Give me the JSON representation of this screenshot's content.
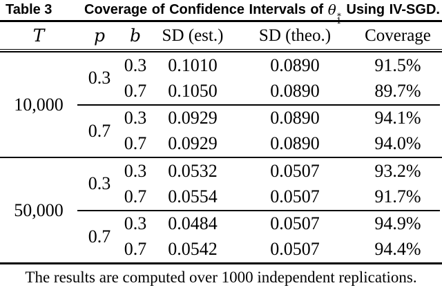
{
  "title": {
    "label": "Table 3",
    "caption_words": [
      "Coverage",
      "of",
      "Confidence",
      "Intervals",
      "of"
    ],
    "math": {
      "symbol": "θ",
      "sup": "∗",
      "sub": "1"
    },
    "caption_suffix_words": [
      "Using",
      "IV-SGD."
    ]
  },
  "table": {
    "columns": {
      "T": "T",
      "p": "p",
      "b": "b",
      "sd_est": "SD (est.)",
      "sd_theo": "SD (theo.)",
      "coverage": "Coverage"
    },
    "groups": [
      {
        "T": "10,000",
        "p_groups": [
          {
            "p": "0.3",
            "rows": [
              {
                "b": "0.3",
                "sd_est": "0.1010",
                "sd_theo": "0.0890",
                "coverage": "91.5%"
              },
              {
                "b": "0.7",
                "sd_est": "0.1050",
                "sd_theo": "0.0890",
                "coverage": "89.7%"
              }
            ]
          },
          {
            "p": "0.7",
            "rows": [
              {
                "b": "0.3",
                "sd_est": "0.0929",
                "sd_theo": "0.0890",
                "coverage": "94.1%"
              },
              {
                "b": "0.7",
                "sd_est": "0.0929",
                "sd_theo": "0.0890",
                "coverage": "94.0%"
              }
            ]
          }
        ]
      },
      {
        "T": "50,000",
        "p_groups": [
          {
            "p": "0.3",
            "rows": [
              {
                "b": "0.3",
                "sd_est": "0.0532",
                "sd_theo": "0.0507",
                "coverage": "93.2%"
              },
              {
                "b": "0.7",
                "sd_est": "0.0554",
                "sd_theo": "0.0507",
                "coverage": "91.7%"
              }
            ]
          },
          {
            "p": "0.7",
            "rows": [
              {
                "b": "0.3",
                "sd_est": "0.0484",
                "sd_theo": "0.0507",
                "coverage": "94.9%"
              },
              {
                "b": "0.7",
                "sd_est": "0.0542",
                "sd_theo": "0.0507",
                "coverage": "94.4%"
              }
            ]
          }
        ]
      }
    ]
  },
  "footnote": "The results are computed over 1000 independent replications.",
  "colors": {
    "text": "#000000",
    "background": "#ffffff",
    "rule": "#000000"
  }
}
